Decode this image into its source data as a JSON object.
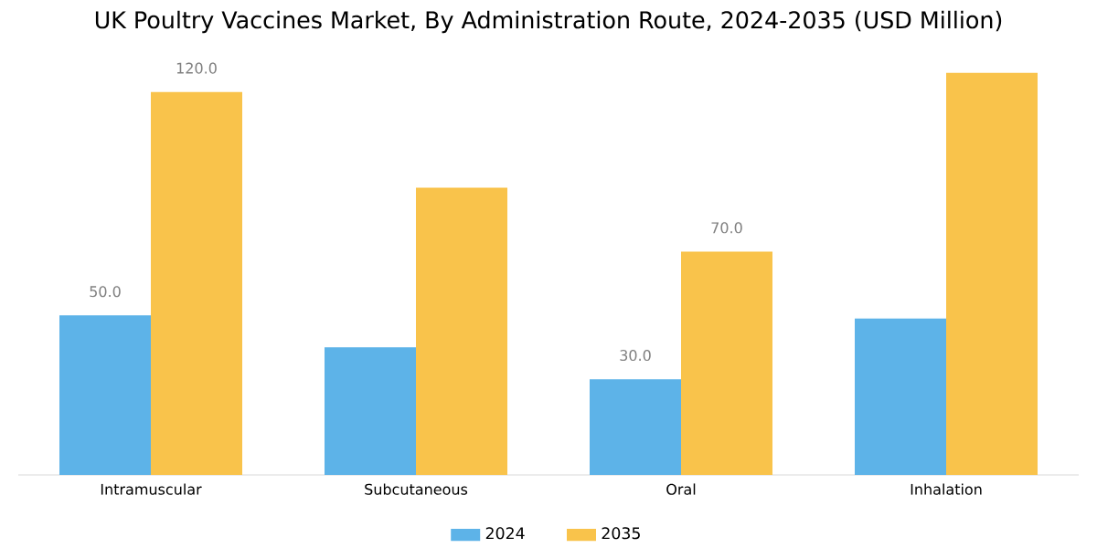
{
  "chart_data": {
    "type": "bar",
    "title": "UK Poultry Vaccines Market, By Administration Route, 2024-2035 (USD Million)",
    "categories": [
      "Intramuscular",
      "Subcutaneous",
      "Oral",
      "Inhalation"
    ],
    "series": [
      {
        "name": "2024",
        "color": "#5db3e8",
        "values": [
          50,
          40,
          30,
          49
        ],
        "value_labels": [
          "50.0",
          null,
          "30.0",
          null
        ]
      },
      {
        "name": "2035",
        "color": "#f9c34b",
        "values": [
          120,
          90,
          70,
          126
        ],
        "value_labels": [
          "120.0",
          null,
          "70.0",
          null
        ]
      }
    ],
    "legend": "bottom"
  }
}
